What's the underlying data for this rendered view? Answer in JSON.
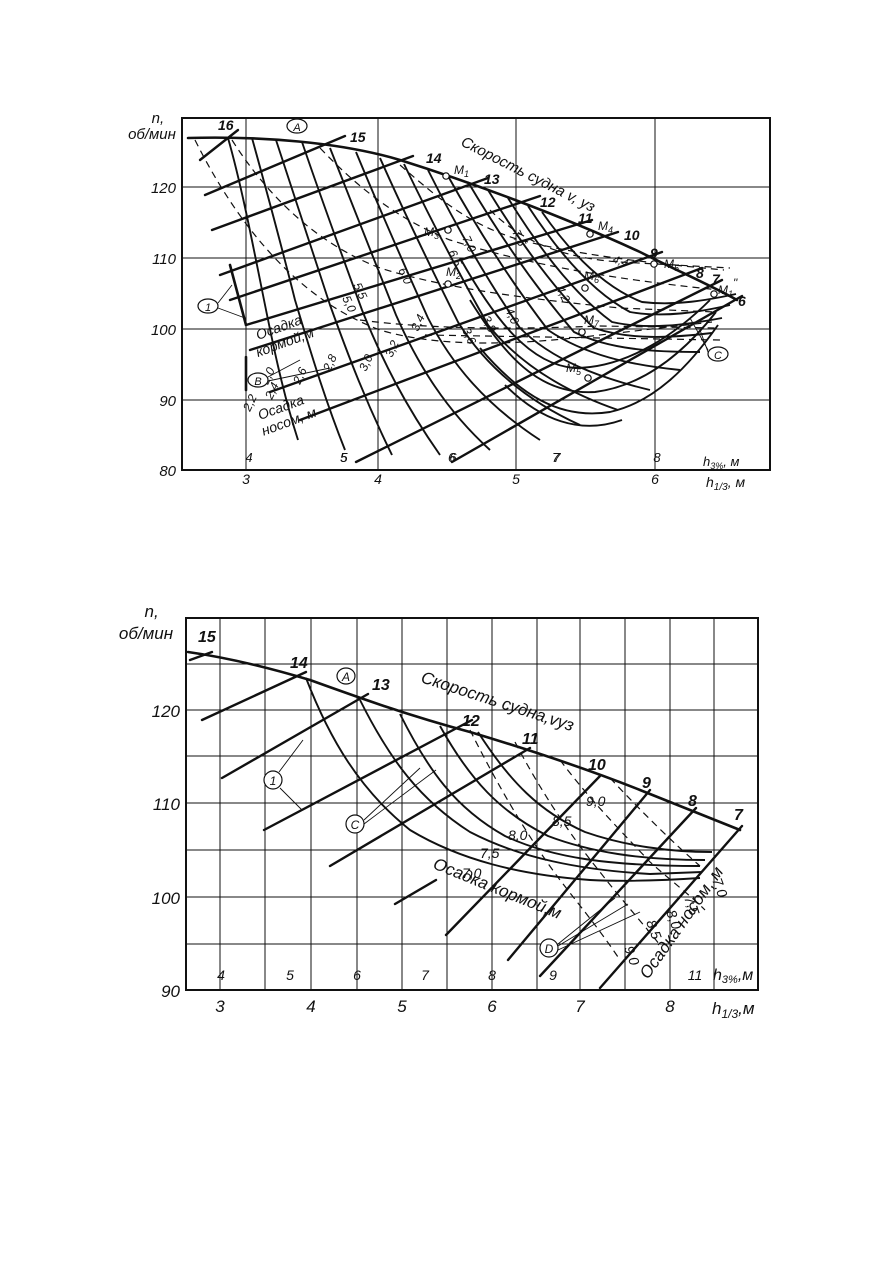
{
  "chart_data": [
    {
      "type": "line",
      "ylabel": "n,\nоб/мин",
      "yticks": [
        80,
        90,
        100,
        110,
        120
      ],
      "ylim": [
        80,
        132
      ],
      "xlabel_top": "h3%, м",
      "xlabel_top_parts": [
        "h",
        "3%",
        ", м"
      ],
      "xticks_top": [
        4,
        5,
        6,
        7,
        8
      ],
      "xlabel_bottom": "h1/3, м",
      "xlabel_bottom_parts": [
        "h",
        "1/3",
        ", м"
      ],
      "xticks_bottom": [
        3,
        4,
        5,
        6
      ],
      "xlim": [
        2.5,
        6.8
      ],
      "speed_title": "Скорость судна v, уз",
      "speed_labels": [
        "16",
        "15",
        "14",
        "13",
        "12",
        "11",
        "10",
        "9",
        "8",
        "7",
        "6"
      ],
      "aft_title": [
        "Осадка",
        "кормой,м"
      ],
      "bow_title": [
        "Осадка",
        "носом, м"
      ],
      "aft_draughts": [
        "7,5",
        "7,0",
        "6,5",
        "6,0",
        "5,5",
        "5,0",
        "4,4",
        "4,2",
        "4,0",
        "3,8",
        "3,6"
      ],
      "bow_draughts": [
        "3,4",
        "3,2",
        "3,0",
        "2,8",
        "2,6",
        "2,4",
        "2,2",
        "2,0"
      ],
      "points": [
        "M1",
        "M3",
        "M2",
        "M4",
        "M5",
        "M6",
        "M7",
        "M5",
        "M1\""
      ],
      "point_labels": [
        "M",
        "1",
        "M",
        "3",
        "M",
        "2",
        "M",
        "4",
        "M",
        "5",
        "M",
        "6",
        "M",
        "7",
        "M",
        "5",
        "M",
        "1",
        "\""
      ],
      "markers": [
        "A",
        "1",
        "B",
        "C"
      ],
      "curve_labels": [
        "5",
        "6",
        "7"
      ]
    },
    {
      "type": "line",
      "ylabel": "n,\nоб/мин",
      "yticks": [
        90,
        100,
        110,
        120
      ],
      "ylim": [
        90,
        127
      ],
      "xlabel_top": "h3%, м",
      "xlabel_top_parts": [
        "h",
        "3%",
        ",м"
      ],
      "xticks_top": [
        4,
        5,
        6,
        7,
        8,
        9,
        11
      ],
      "xlabel_bottom": "h1/3, м",
      "xlabel_bottom_parts": [
        "h",
        "1/3",
        ",м"
      ],
      "xticks_bottom": [
        3,
        4,
        5,
        6,
        7,
        8
      ],
      "xlim": [
        2.65,
        8.3
      ],
      "speed_title": "Скорость судна,vуз",
      "speed_labels": [
        "15",
        "14",
        "13",
        "12",
        "11",
        "10",
        "9",
        "8",
        "7"
      ],
      "aft_title": "Осадка кормой,м",
      "bow_title": "Осадка носом, м",
      "aft_draughts": [
        "9,0",
        "8,5",
        "8,0",
        "7,5",
        "7,0"
      ],
      "bow_draughts": [
        "7,0",
        "7,5",
        "8,0",
        "8,5",
        "9,0"
      ],
      "markers": [
        "A",
        "1",
        "C",
        "D"
      ]
    }
  ]
}
